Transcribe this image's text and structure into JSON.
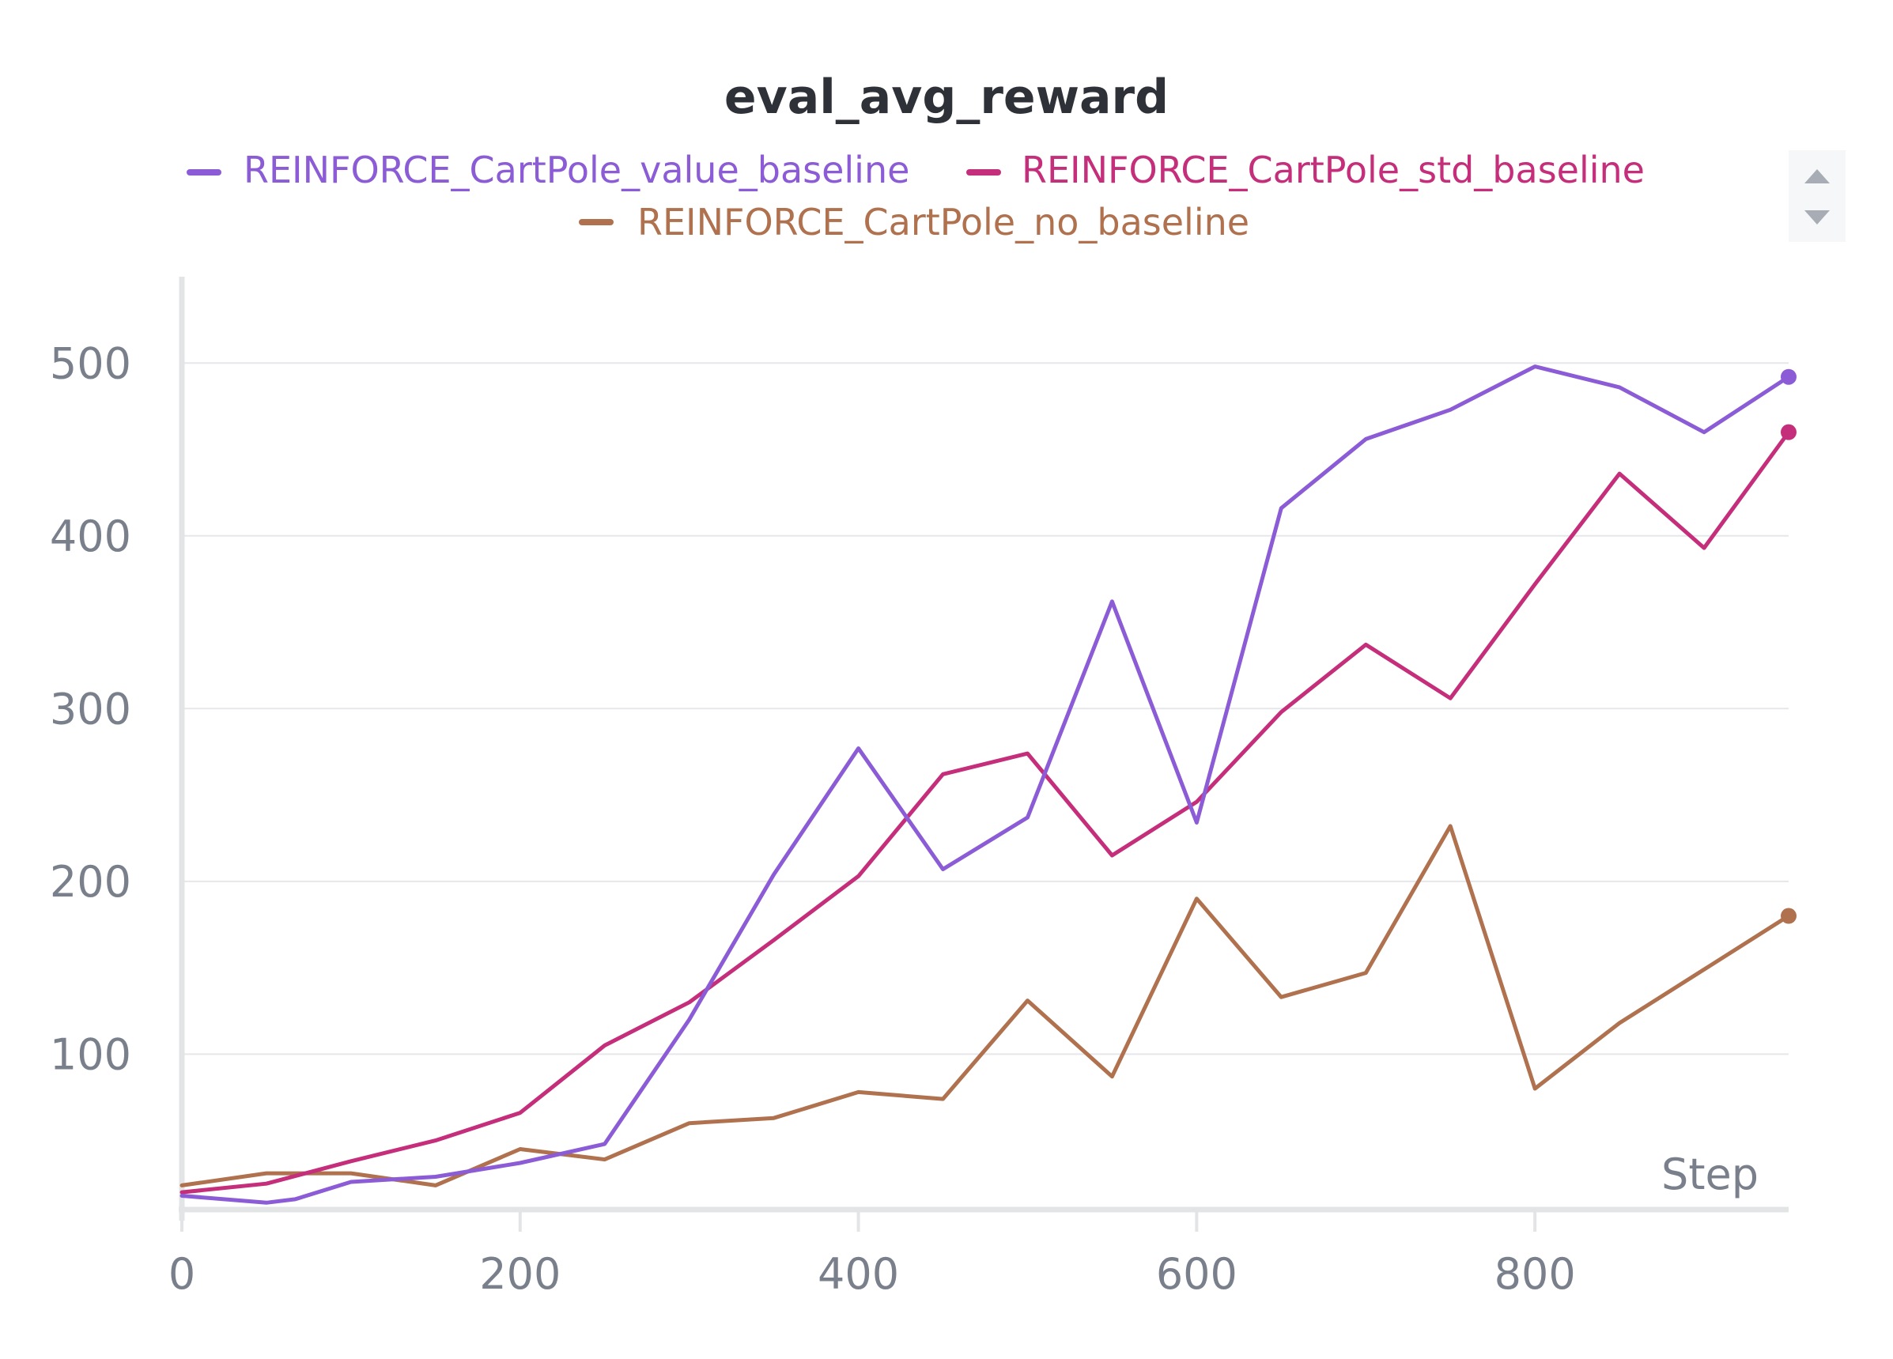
{
  "chart_data": {
    "type": "line",
    "title": "eval_avg_reward",
    "xlabel": "Step",
    "ylabel": "",
    "x_ticks": [
      0,
      200,
      400,
      600,
      800
    ],
    "y_ticks": [
      100,
      200,
      300,
      400,
      500
    ],
    "xlim": [
      0,
      950
    ],
    "ylim": [
      10,
      550
    ],
    "grid": true,
    "legend_position": "top",
    "series": [
      {
        "name": "REINFORCE_CartPole_value_baseline",
        "color": "#8b5cd6",
        "x": [
          0,
          50,
          67,
          100,
          150,
          200,
          250,
          300,
          350,
          400,
          450,
          500,
          550,
          600,
          650,
          700,
          750,
          800,
          850,
          900,
          950
        ],
        "y": [
          18,
          14,
          16,
          26,
          29,
          37,
          48,
          120,
          204,
          277,
          207,
          237,
          362,
          234,
          416,
          456,
          473,
          498,
          486,
          460,
          492
        ]
      },
      {
        "name": "REINFORCE_CartPole_std_baseline",
        "color": "#c42e7a",
        "x": [
          0,
          50,
          100,
          150,
          200,
          250,
          300,
          350,
          400,
          450,
          500,
          550,
          600,
          650,
          700,
          750,
          800,
          850,
          900,
          950
        ],
        "y": [
          20,
          25,
          38,
          50,
          66,
          105,
          130,
          166,
          203,
          262,
          274,
          215,
          246,
          298,
          337,
          306,
          372,
          436,
          393,
          460
        ]
      },
      {
        "name": "REINFORCE_CartPole_no_baseline",
        "color": "#b0714e",
        "x": [
          0,
          50,
          100,
          150,
          200,
          250,
          300,
          350,
          400,
          450,
          500,
          550,
          600,
          650,
          700,
          750,
          800,
          850,
          900,
          950
        ],
        "y": [
          24,
          31,
          31,
          24,
          45,
          39,
          60,
          63,
          78,
          74,
          131,
          87,
          190,
          133,
          147,
          232,
          80,
          118,
          149,
          180
        ]
      }
    ]
  },
  "legend_scroll": {
    "up_icon": "triangle-up-icon",
    "down_icon": "triangle-down-icon",
    "color": "#a8adb5"
  }
}
